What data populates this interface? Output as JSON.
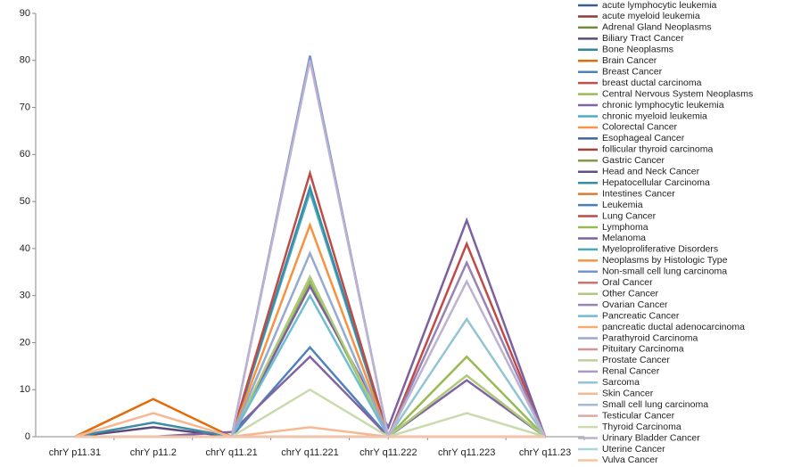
{
  "chart_data": {
    "type": "line",
    "categories": [
      "chrY p11.31",
      "chrY p11.2",
      "chrY q11.21",
      "chrY q11.221",
      "chrY q11.222",
      "chrY q11.223",
      "chrY q11.23"
    ],
    "ylim": [
      0,
      90
    ],
    "yticks": [
      0,
      10,
      20,
      30,
      40,
      50,
      60,
      70,
      80,
      90
    ],
    "series": [
      {
        "name": "acute lymphocytic leukemia",
        "color": "#3B5E8C",
        "values": [
          0,
          0,
          0,
          0,
          0,
          0,
          0
        ]
      },
      {
        "name": "acute myeloid leukemia",
        "color": "#8E3A38",
        "values": [
          0,
          0,
          0,
          0,
          0,
          0,
          0
        ]
      },
      {
        "name": "Adrenal Gland Neoplasms",
        "color": "#71893F",
        "values": [
          0,
          0,
          0,
          0,
          0,
          0,
          0
        ]
      },
      {
        "name": "Biliary Tract Cancer",
        "color": "#5E4A7A",
        "values": [
          0,
          2,
          0,
          0,
          0,
          0,
          0
        ]
      },
      {
        "name": "Bone Neoplasms",
        "color": "#31859C",
        "values": [
          0,
          0,
          0,
          0,
          0,
          0,
          0
        ]
      },
      {
        "name": "Brain Cancer",
        "color": "#E36C09",
        "values": [
          0,
          8,
          0,
          0,
          0,
          0,
          0
        ]
      },
      {
        "name": "Breast Cancer",
        "color": "#4F81BD",
        "values": [
          0,
          0,
          0,
          19,
          0,
          0,
          0
        ]
      },
      {
        "name": "breast ductal carcinoma",
        "color": "#C0504D",
        "values": [
          0,
          0,
          0,
          0,
          0,
          0,
          0
        ]
      },
      {
        "name": "Central Nervous System Neoplasms",
        "color": "#9BBB59",
        "values": [
          0,
          0,
          0,
          0,
          0,
          0,
          0
        ]
      },
      {
        "name": "chronic lymphocytic leukemia",
        "color": "#8064A2",
        "values": [
          0,
          0,
          1,
          17,
          0,
          12,
          0
        ]
      },
      {
        "name": "chronic myeloid leukemia",
        "color": "#4BACC6",
        "values": [
          0,
          0,
          0,
          52,
          0,
          0,
          0
        ]
      },
      {
        "name": "Colorectal Cancer",
        "color": "#F79646",
        "values": [
          0,
          0,
          0,
          0,
          0,
          0,
          0
        ]
      },
      {
        "name": "Esophageal Cancer",
        "color": "#3F6797",
        "values": [
          0,
          0,
          0,
          0,
          0,
          0,
          0
        ]
      },
      {
        "name": "follicular thyroid carcinoma",
        "color": "#A5403D",
        "values": [
          0,
          0,
          0,
          0,
          0,
          0,
          0
        ]
      },
      {
        "name": "Gastric Cancer",
        "color": "#7F9A48",
        "values": [
          0,
          0,
          0,
          0,
          0,
          0,
          0
        ]
      },
      {
        "name": "Head and Neck Cancer",
        "color": "#664E86",
        "values": [
          0,
          0,
          0,
          0,
          0,
          0,
          0
        ]
      },
      {
        "name": "Hepatocellular Carcinoma",
        "color": "#3C8DA3",
        "values": [
          0,
          3,
          0,
          53,
          0,
          0,
          0
        ]
      },
      {
        "name": "Intestines Cancer",
        "color": "#D97C2B",
        "values": [
          0,
          0,
          0,
          0,
          0,
          0,
          0
        ]
      },
      {
        "name": "Leukemia",
        "color": "#4A7EBB",
        "values": [
          0,
          0,
          0,
          0,
          0,
          0,
          0
        ]
      },
      {
        "name": "Lung Cancer",
        "color": "#BE4B48",
        "values": [
          0,
          0,
          0,
          56,
          0,
          41,
          0
        ]
      },
      {
        "name": "Lymphoma",
        "color": "#98B954",
        "values": [
          0,
          0,
          0,
          33,
          0,
          17,
          0
        ]
      },
      {
        "name": "Melanoma",
        "color": "#7D60A0",
        "values": [
          0,
          0,
          0,
          32,
          2,
          46,
          0
        ]
      },
      {
        "name": "Myeloproliferative Disorders",
        "color": "#46AAC5",
        "values": [
          0,
          0,
          0,
          0,
          0,
          0,
          0
        ]
      },
      {
        "name": "Neoplasms by Histologic Type",
        "color": "#F69240",
        "values": [
          0,
          0,
          0,
          45,
          0,
          0,
          0
        ]
      },
      {
        "name": "Non-small cell lung carcinoma",
        "color": "#7394CD",
        "values": [
          0,
          0,
          0,
          81,
          0,
          0,
          0
        ]
      },
      {
        "name": "Oral Cancer",
        "color": "#CD7371",
        "values": [
          0,
          0,
          0,
          0,
          0,
          0,
          0
        ]
      },
      {
        "name": "Other Cancer",
        "color": "#AFC97A",
        "values": [
          0,
          0,
          0,
          34,
          0,
          13,
          0
        ]
      },
      {
        "name": "Ovarian Cancer",
        "color": "#9983B5",
        "values": [
          0,
          0,
          0,
          0,
          0,
          37,
          0
        ]
      },
      {
        "name": "Pancreatic Cancer",
        "color": "#6FBDD1",
        "values": [
          0,
          0,
          0,
          30,
          0,
          0,
          0
        ]
      },
      {
        "name": "pancreatic ductal adenocarcinoma",
        "color": "#F9AB6B",
        "values": [
          0,
          0,
          0,
          0,
          0,
          0,
          0
        ]
      },
      {
        "name": "Parathyroid Carcinoma",
        "color": "#95A9D1",
        "values": [
          0,
          0,
          0,
          39,
          0,
          0,
          0
        ]
      },
      {
        "name": "Pituitary Carcinoma",
        "color": "#D19492",
        "values": [
          0,
          0,
          0,
          0,
          0,
          0,
          0
        ]
      },
      {
        "name": "Prostate Cancer",
        "color": "#BCD09A",
        "values": [
          0,
          0,
          0,
          0,
          0,
          0,
          0
        ]
      },
      {
        "name": "Renal Cancer",
        "color": "#A99BC1",
        "values": [
          0,
          0,
          0,
          0,
          0,
          0,
          0
        ]
      },
      {
        "name": "Sarcoma",
        "color": "#92C5D4",
        "values": [
          0,
          0,
          0,
          0,
          0,
          25,
          0
        ]
      },
      {
        "name": "Skin Cancer",
        "color": "#F7B793",
        "values": [
          0,
          5,
          0,
          2,
          0,
          0,
          0
        ]
      },
      {
        "name": "Small cell lung carcinoma",
        "color": "#A7B9DA",
        "values": [
          0,
          0,
          0,
          0,
          0,
          0,
          0
        ]
      },
      {
        "name": "Testicular Cancer",
        "color": "#DAA9A7",
        "values": [
          0,
          0,
          0,
          0,
          0,
          0,
          0
        ]
      },
      {
        "name": "Thyroid Carcinoma",
        "color": "#C9DBAD",
        "values": [
          0,
          0,
          0,
          10,
          0,
          5,
          0
        ]
      },
      {
        "name": "Urinary Bladder Cancer",
        "color": "#BFB2D1",
        "values": [
          0,
          0,
          0,
          80,
          0,
          33,
          0
        ]
      },
      {
        "name": "Uterine Cancer",
        "color": "#A9D4E0",
        "values": [
          0,
          0,
          0,
          0,
          0,
          0,
          0
        ]
      },
      {
        "name": "Vulva Cancer",
        "color": "#F8C3A4",
        "values": [
          0,
          0,
          0,
          0,
          0,
          0,
          0
        ]
      }
    ]
  }
}
